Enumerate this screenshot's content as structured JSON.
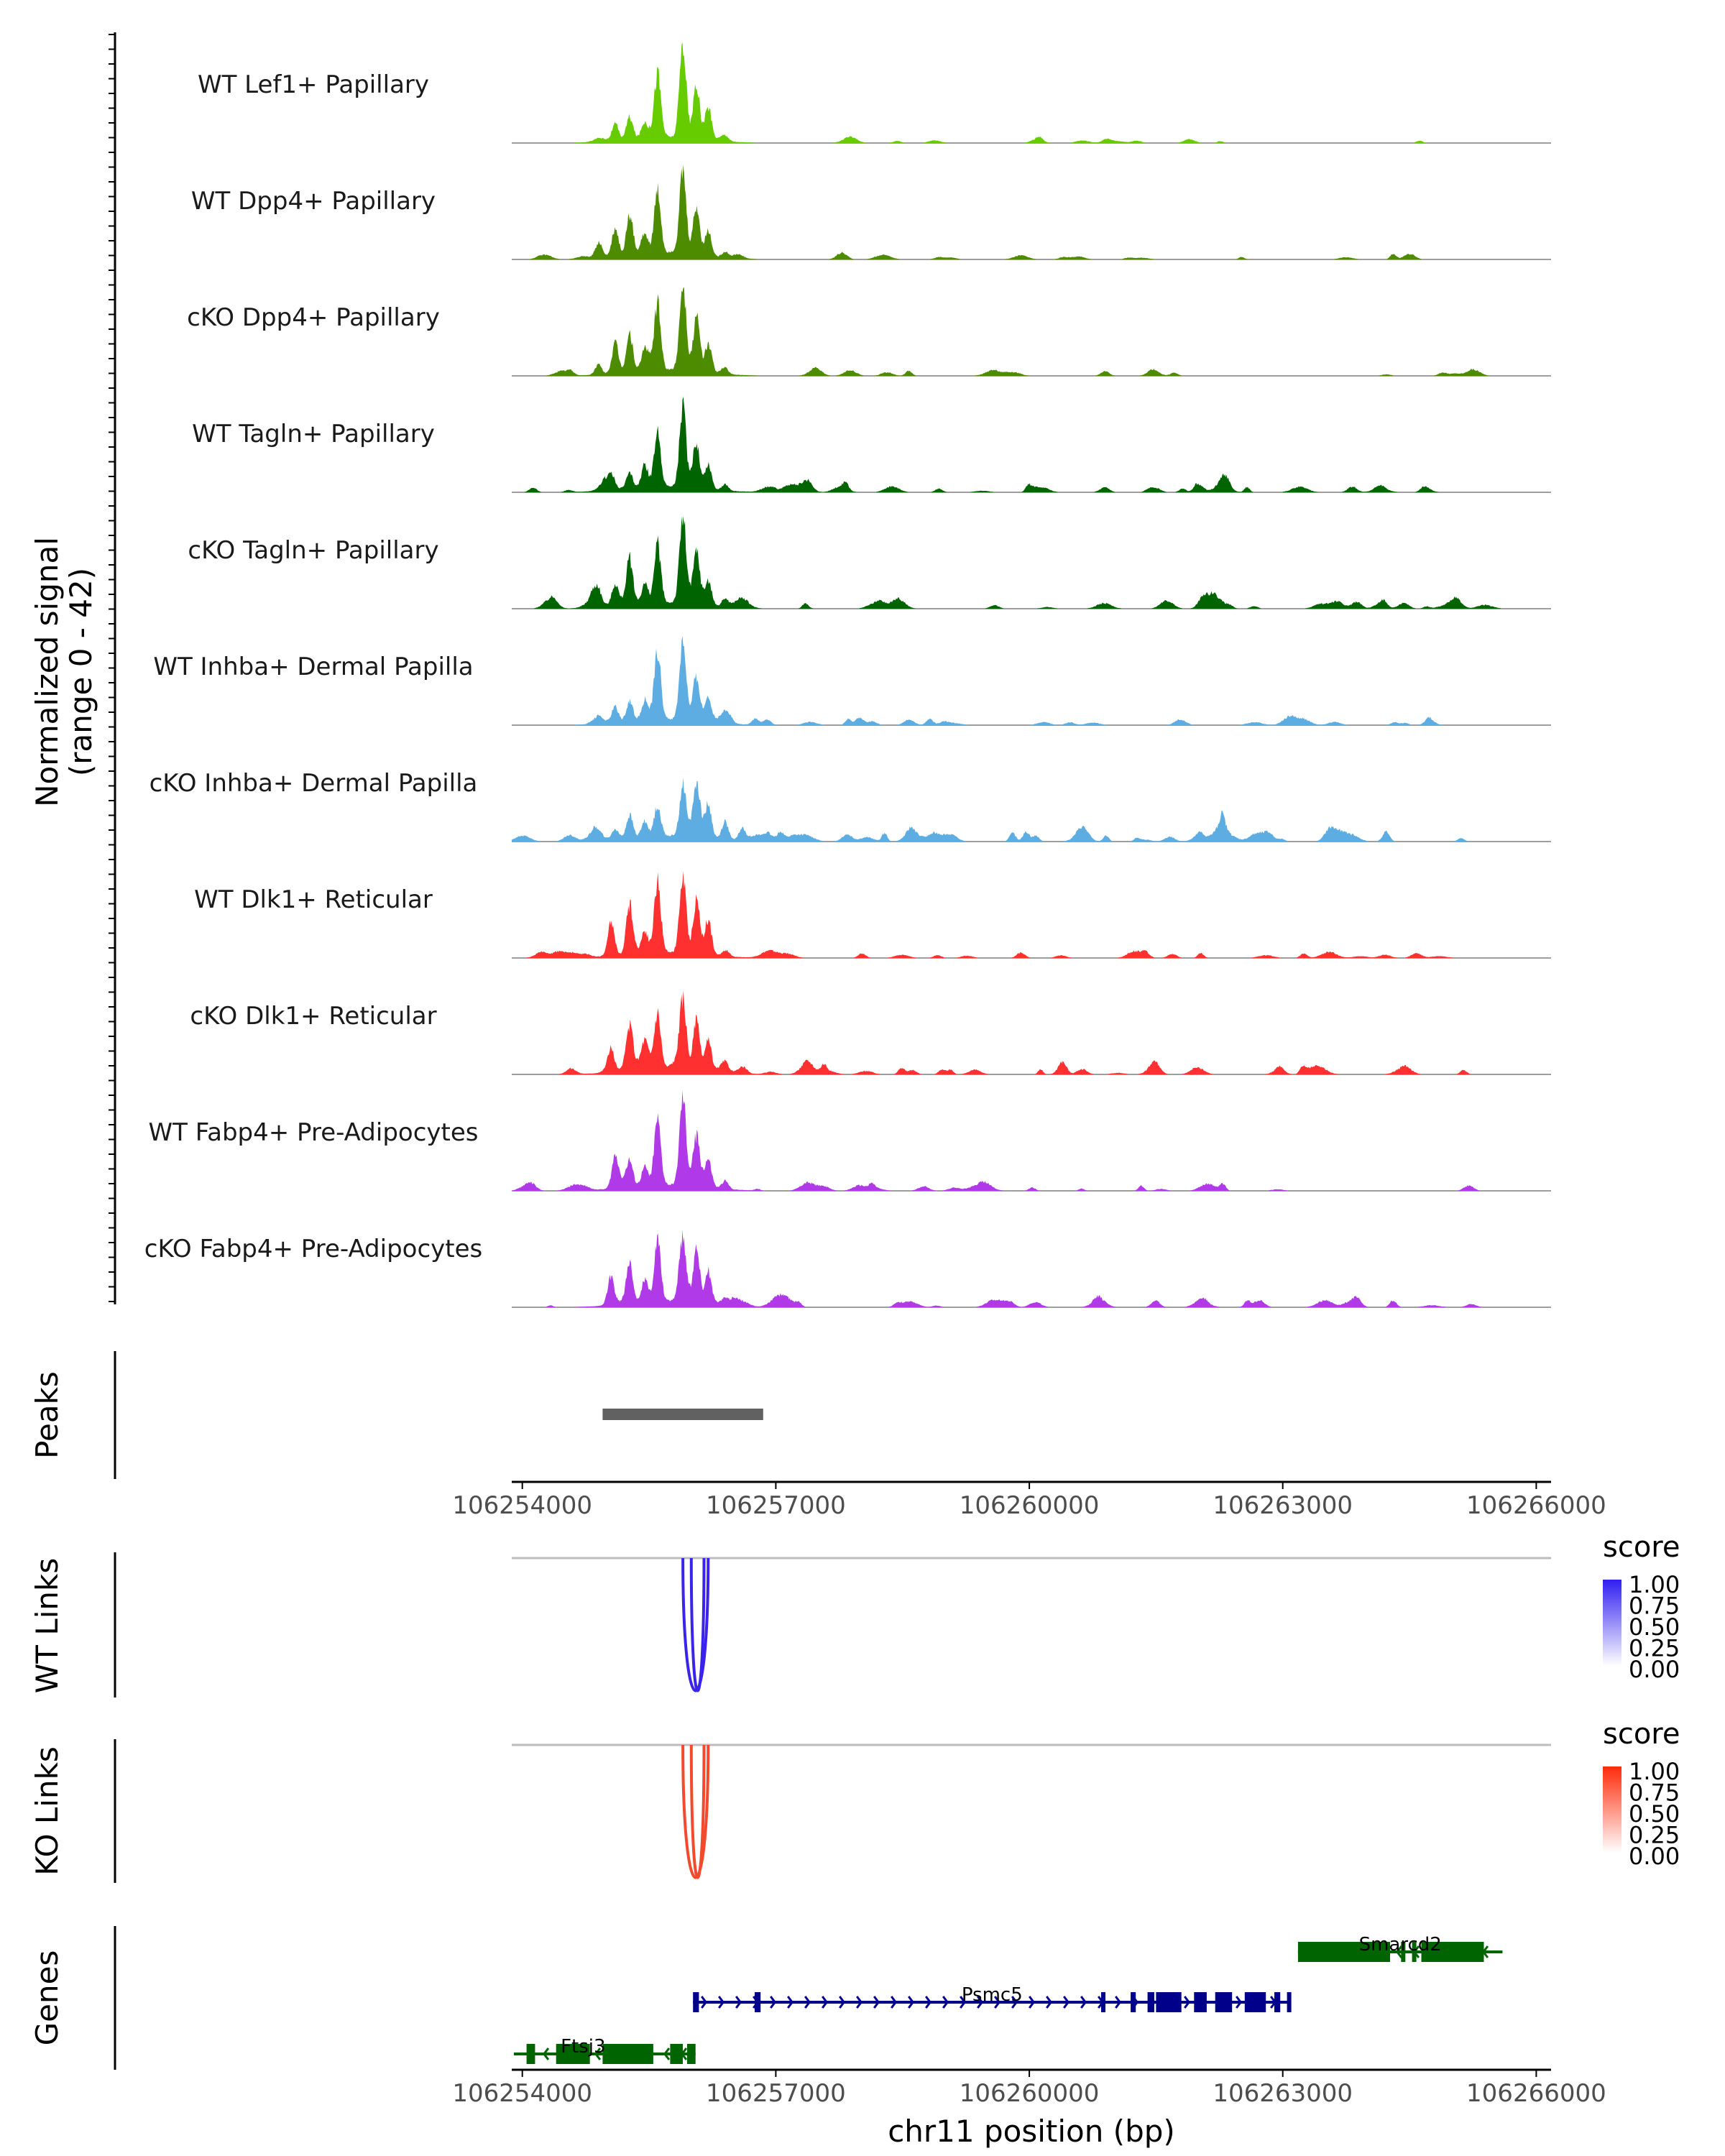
{
  "chart_data": {
    "type": "area",
    "title": "",
    "chromosome": "chr11",
    "xlabel": "chr11 position (bp)",
    "xlim": [
      106253875,
      106266175
    ],
    "x_ticks": [
      106254000,
      106257000,
      106260000,
      106263000,
      106266000
    ],
    "x_tick_labels": [
      "106254000",
      "106257000",
      "106260000",
      "106263000",
      "106266000"
    ],
    "coverage": {
      "ylabel_line1": "Normalized signal",
      "ylabel_line2": "(range 0 - 42)",
      "ylim": [
        0,
        42
      ],
      "series": [
        {
          "name": "WT Lef1+ Papillary",
          "color": "#66cc00",
          "level": 0.0,
          "peaks": [
            [
              106255100,
              0.16
            ],
            [
              106255270,
              0.22
            ],
            [
              106255450,
              0.16
            ],
            [
              106255600,
              0.62
            ],
            [
              106255900,
              0.95
            ],
            [
              106256060,
              0.5
            ],
            [
              106256200,
              0.32
            ],
            [
              106256400,
              0.06
            ]
          ]
        },
        {
          "name": "WT Dpp4+ Papillary",
          "color": "#4d8c00",
          "level": 0.4,
          "peaks": [
            [
              106254900,
              0.12
            ],
            [
              106255100,
              0.28
            ],
            [
              106255270,
              0.4
            ],
            [
              106255450,
              0.22
            ],
            [
              106255600,
              0.62
            ],
            [
              106255900,
              0.8
            ],
            [
              106256060,
              0.48
            ],
            [
              106256200,
              0.25
            ],
            [
              106256400,
              0.06
            ]
          ]
        },
        {
          "name": "cKO Dpp4+ Papillary",
          "color": "#4d8c00",
          "level": 0.35,
          "peaks": [
            [
              106254900,
              0.1
            ],
            [
              106255100,
              0.3
            ],
            [
              106255270,
              0.38
            ],
            [
              106255450,
              0.22
            ],
            [
              106255600,
              0.62
            ],
            [
              106255900,
              0.85
            ],
            [
              106256060,
              0.48
            ],
            [
              106256200,
              0.28
            ],
            [
              106256400,
              0.05
            ]
          ]
        },
        {
          "name": "WT Tagln+ Papillary",
          "color": "#006400",
          "level": 0.6,
          "peaks": [
            [
              106255050,
              0.12
            ],
            [
              106255270,
              0.15
            ],
            [
              106255450,
              0.22
            ],
            [
              106255600,
              0.55
            ],
            [
              106255900,
              0.8
            ],
            [
              106256060,
              0.45
            ],
            [
              106256200,
              0.25
            ],
            [
              106256400,
              0.06
            ]
          ]
        },
        {
          "name": "cKO Tagln+ Papillary",
          "color": "#006400",
          "level": 0.9,
          "peaks": [
            [
              106254900,
              0.08
            ],
            [
              106255100,
              0.22
            ],
            [
              106255270,
              0.42
            ],
            [
              106255450,
              0.2
            ],
            [
              106255600,
              0.58
            ],
            [
              106255900,
              0.82
            ],
            [
              106256060,
              0.45
            ],
            [
              106256200,
              0.25
            ],
            [
              106256400,
              0.08
            ]
          ]
        },
        {
          "name": "WT Inhba+ Dermal Papilla",
          "color": "#5dade2",
          "level": 0.5,
          "peaks": [
            [
              106255100,
              0.15
            ],
            [
              106255270,
              0.2
            ],
            [
              106255450,
              0.2
            ],
            [
              106255600,
              0.65
            ],
            [
              106255900,
              0.78
            ],
            [
              106256060,
              0.45
            ],
            [
              106256200,
              0.25
            ],
            [
              106256400,
              0.05
            ]
          ]
        },
        {
          "name": "cKO Inhba+ Dermal Papilla",
          "color": "#5dade2",
          "level": 1.2,
          "peaks": [
            [
              106255100,
              0.1
            ],
            [
              106255270,
              0.22
            ],
            [
              106255450,
              0.15
            ],
            [
              106255600,
              0.3
            ],
            [
              106255900,
              0.5
            ],
            [
              106256060,
              0.5
            ],
            [
              106256200,
              0.3
            ],
            [
              106256400,
              0.18
            ],
            [
              106256600,
              0.12
            ]
          ]
        },
        {
          "name": "WT Dlk1+ Reticular",
          "color": "#ff3030",
          "level": 0.6,
          "peaks": [
            [
              106255050,
              0.35
            ],
            [
              106255270,
              0.48
            ],
            [
              106255450,
              0.22
            ],
            [
              106255600,
              0.7
            ],
            [
              106255900,
              0.75
            ],
            [
              106256060,
              0.5
            ],
            [
              106256200,
              0.35
            ],
            [
              106256400,
              0.05
            ]
          ]
        },
        {
          "name": "cKO Dlk1+ Reticular",
          "color": "#ff3030",
          "level": 0.75,
          "peaks": [
            [
              106255050,
              0.22
            ],
            [
              106255270,
              0.4
            ],
            [
              106255450,
              0.25
            ],
            [
              106255600,
              0.55
            ],
            [
              106255900,
              0.7
            ],
            [
              106256060,
              0.48
            ],
            [
              106256200,
              0.3
            ],
            [
              106256400,
              0.06
            ]
          ]
        },
        {
          "name": "WT Fabp4+ Pre-Adipocytes",
          "color": "#b03ae8",
          "level": 0.55,
          "peaks": [
            [
              106255100,
              0.32
            ],
            [
              106255270,
              0.25
            ],
            [
              106255450,
              0.18
            ],
            [
              106255600,
              0.62
            ],
            [
              106255900,
              0.85
            ],
            [
              106256060,
              0.45
            ],
            [
              106256200,
              0.25
            ],
            [
              106256400,
              0.08
            ]
          ]
        },
        {
          "name": "cKO Fabp4+ Pre-Adipocytes",
          "color": "#b03ae8",
          "level": 0.7,
          "peaks": [
            [
              106255050,
              0.28
            ],
            [
              106255270,
              0.35
            ],
            [
              106255450,
              0.22
            ],
            [
              106255600,
              0.62
            ],
            [
              106255900,
              0.62
            ],
            [
              106256060,
              0.55
            ],
            [
              106256200,
              0.32
            ],
            [
              106256400,
              0.06
            ]
          ]
        }
      ]
    },
    "peaks_track": {
      "ylabel": "Peaks",
      "color": "#616161",
      "intervals": [
        [
          106254950,
          106256850
        ]
      ]
    },
    "links": {
      "legend_title": "score",
      "legend_ticks": [
        "1.00",
        "0.75",
        "0.50",
        "0.25",
        "0.00"
      ],
      "tracks": [
        {
          "ylabel": "WT Links",
          "color": "#3a24ec",
          "color_high": "#2f1ef0",
          "arcs": [
            [
              106255900,
              106256200,
              0.95
            ],
            [
              106256000,
              106256150,
              0.9
            ]
          ]
        },
        {
          "ylabel": "KO Links",
          "color": "#f3492c",
          "color_high": "#ff2a0a",
          "arcs": [
            [
              106255900,
              106256200,
              0.95
            ],
            [
              106256000,
              106256150,
              0.9
            ]
          ]
        }
      ]
    },
    "genes": {
      "ylabel": "Genes",
      "list": [
        {
          "name": "Smarcd2",
          "start": 106263180,
          "end": 106265600,
          "strand": "-",
          "color": "#006400",
          "row": 0,
          "exons": [
            [
              106263180,
              106264270
            ],
            [
              106264400,
              106264450
            ],
            [
              106264530,
              106264580
            ],
            [
              106264640,
              106265380
            ]
          ]
        },
        {
          "name": "Psmc5",
          "start": 106256020,
          "end": 106263100,
          "strand": "+",
          "color": "#00008b",
          "row": 1,
          "exons": [
            [
              106256020,
              106256090
            ],
            [
              106256750,
              106256820
            ],
            [
              106260850,
              106260900
            ],
            [
              106261200,
              106261260
            ],
            [
              106261400,
              106261480
            ],
            [
              106261500,
              106261800
            ],
            [
              106261950,
              106262100
            ],
            [
              106262200,
              106262400
            ],
            [
              106262550,
              106262800
            ],
            [
              106262900,
              106262970
            ],
            [
              106263050,
              106263100
            ]
          ]
        },
        {
          "name": "Ftsj3",
          "start": 106253900,
          "end": 106256050,
          "strand": "-",
          "color": "#006400",
          "row": 2,
          "exons": [
            [
              106254050,
              106254150
            ],
            [
              106254400,
              106254800
            ],
            [
              106254950,
              106255550
            ],
            [
              106255750,
              106255900
            ],
            [
              106255950,
              106256050
            ]
          ]
        }
      ]
    }
  }
}
